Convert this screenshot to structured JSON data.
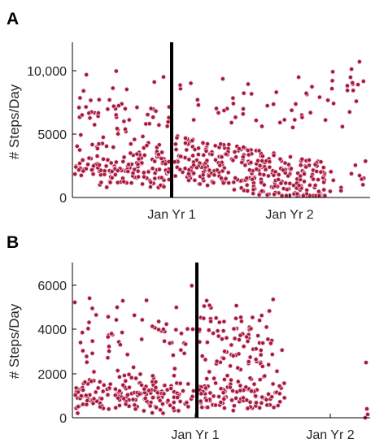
{
  "chart_data": [
    {
      "type": "scatter",
      "panel_label": "A",
      "title": "",
      "xlabel": "",
      "ylabel": "# Steps/Day",
      "ylim": [
        0,
        12000
      ],
      "x_ticks": [
        "Jan Yr 1",
        "Jan Yr 2"
      ],
      "y_ticks": [
        "0",
        "5000",
        "10,000"
      ],
      "event_marker": "vertical black line just before Jan Yr 1",
      "point_color": "#a51c30",
      "grid": false,
      "clusters": [
        {
          "period": "before line",
          "approx_steps_range": [
            0,
            10500
          ],
          "dense_range": [
            500,
            4500
          ]
        },
        {
          "period": "after line",
          "approx_steps_range": [
            0,
            10800
          ],
          "dense_range": [
            500,
            4000
          ]
        }
      ]
    },
    {
      "type": "scatter",
      "panel_label": "B",
      "title": "",
      "xlabel": "",
      "ylabel": "# Steps/Day",
      "ylim": [
        0,
        7000
      ],
      "x_ticks": [
        "Jan Yr 1",
        "Jan Yr 2"
      ],
      "y_ticks": [
        "0",
        "2000",
        "4000",
        "6000"
      ],
      "event_marker": "vertical black line just after Jan Yr 1",
      "point_color": "#a51c30",
      "grid": false,
      "clusters": [
        {
          "period": "before line",
          "approx_steps_range": [
            0,
            6600
          ],
          "dense_range": [
            200,
            2000
          ]
        },
        {
          "period": "after line",
          "approx_steps_range": [
            0,
            5800
          ],
          "dense_range": [
            300,
            4500
          ]
        }
      ]
    }
  ]
}
